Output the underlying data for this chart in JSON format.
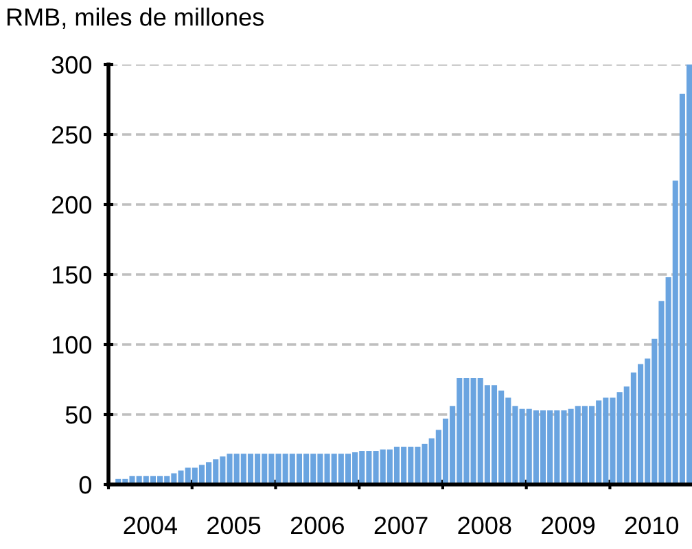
{
  "chart_data": {
    "type": "bar",
    "ylabel": "RMB, miles de millones",
    "color": "#6aa4e0",
    "x": [
      "2004-02",
      "2004-03",
      "2004-04",
      "2004-05",
      "2004-06",
      "2004-07",
      "2004-08",
      "2004-09",
      "2004-10",
      "2004-11",
      "2004-12",
      "2005-01",
      "2005-02",
      "2005-03",
      "2005-04",
      "2005-05",
      "2005-06",
      "2005-07",
      "2005-08",
      "2005-09",
      "2005-10",
      "2005-11",
      "2005-12",
      "2006-01",
      "2006-02",
      "2006-03",
      "2006-04",
      "2006-05",
      "2006-06",
      "2006-07",
      "2006-08",
      "2006-09",
      "2006-10",
      "2006-11",
      "2006-12",
      "2007-01",
      "2007-02",
      "2007-03",
      "2007-04",
      "2007-05",
      "2007-06",
      "2007-07",
      "2007-08",
      "2007-09",
      "2007-10",
      "2007-11",
      "2007-12",
      "2008-01",
      "2008-02",
      "2008-03",
      "2008-04",
      "2008-05",
      "2008-06",
      "2008-07",
      "2008-08",
      "2008-09",
      "2008-10",
      "2008-11",
      "2008-12",
      "2009-01",
      "2009-02",
      "2009-03",
      "2009-04",
      "2009-05",
      "2009-06",
      "2009-07",
      "2009-08",
      "2009-09",
      "2009-10",
      "2009-11",
      "2009-12",
      "2010-01",
      "2010-02",
      "2010-03",
      "2010-04",
      "2010-05",
      "2010-06",
      "2010-07",
      "2010-08",
      "2010-09",
      "2010-10",
      "2010-11",
      "2010-12"
    ],
    "values": [
      4,
      4,
      6,
      6,
      6,
      6,
      6,
      6,
      8,
      10,
      12,
      12,
      14,
      16,
      18,
      20,
      22,
      22,
      22,
      22,
      22,
      22,
      22,
      22,
      22,
      22,
      22,
      22,
      22,
      22,
      22,
      22,
      22,
      22,
      23,
      24,
      24,
      24,
      25,
      25,
      27,
      27,
      27,
      27,
      29,
      33,
      39,
      47,
      56,
      76,
      76,
      76,
      76,
      71,
      71,
      67,
      62,
      56,
      54,
      54,
      53,
      53,
      53,
      53,
      53,
      54,
      56,
      56,
      56,
      60,
      62,
      62,
      66,
      70,
      80,
      86,
      90,
      104,
      131,
      148,
      217,
      279,
      300
    ],
    "xlim": [
      "2004-01",
      "2010-12-25"
    ],
    "xticks": [
      {
        "value": "2004-01",
        "label": null
      },
      {
        "value": "2004-07",
        "label": "2004"
      },
      {
        "value": "2005-01",
        "label": null
      },
      {
        "value": "2005-07",
        "label": "2005"
      },
      {
        "value": "2006-01",
        "label": null
      },
      {
        "value": "2006-07",
        "label": "2006"
      },
      {
        "value": "2007-01",
        "label": null
      },
      {
        "value": "2007-07",
        "label": "2007"
      },
      {
        "value": "2008-01",
        "label": null
      },
      {
        "value": "2008-07",
        "label": "2008"
      },
      {
        "value": "2009-01",
        "label": null
      },
      {
        "value": "2009-07",
        "label": "2009"
      },
      {
        "value": "2010-01",
        "label": null
      },
      {
        "value": "2010-07",
        "label": "2010"
      }
    ],
    "ylim": [
      0,
      300
    ],
    "yticks": [
      0,
      50,
      100,
      150,
      200,
      250,
      300
    ],
    "grid": "y"
  }
}
